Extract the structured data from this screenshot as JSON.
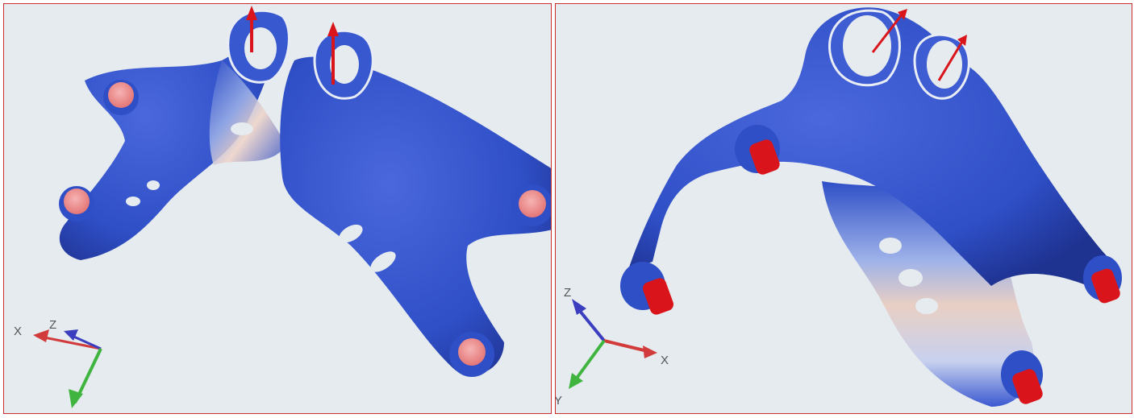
{
  "viewports": [
    {
      "id": "left",
      "triad": {
        "x": "X",
        "y": "",
        "z": "Z"
      }
    },
    {
      "id": "right",
      "triad": {
        "x": "X",
        "y": "Y",
        "z": "Z"
      }
    }
  ],
  "colors": {
    "background": "#e6ebef",
    "border": "#c9302c",
    "stress_low": "#2f4fc7",
    "stress_high": "#e24a3a",
    "pin": "#d9141b",
    "axis_x": "#d23b3b",
    "axis_y": "#3fb53f",
    "axis_z": "#3b3fbf"
  }
}
